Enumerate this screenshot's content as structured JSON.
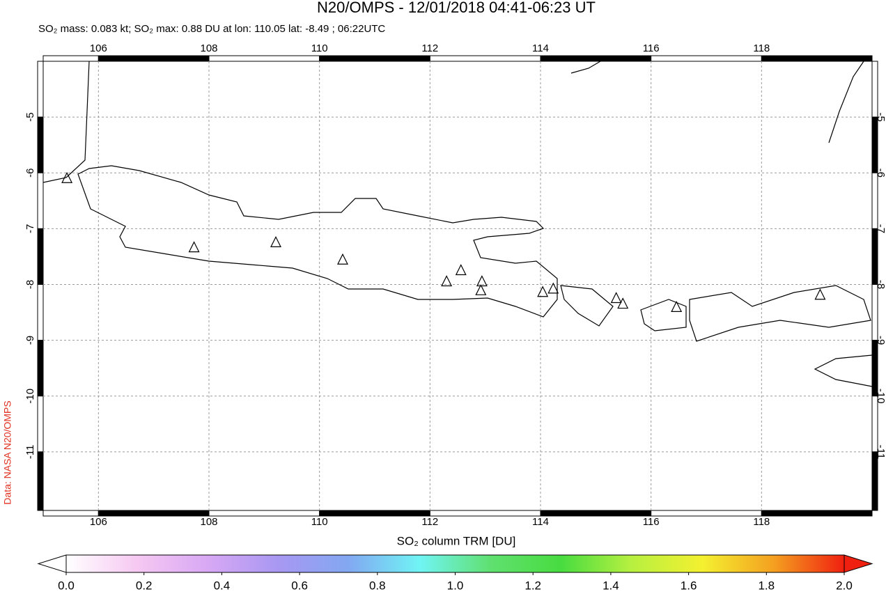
{
  "chart_data": {
    "type": "map",
    "title": "N20/OMPS - 12/01/2018 04:41-06:23 UT",
    "subtitle": "SO₂ mass: 0.083 kt; SO₂ max: 0.88 DU at lon: 110.05 lat: -8.49 ; 06:22UTC",
    "side_note": "Data: NASA N20/OMPS",
    "xlim": [
      105,
      120
    ],
    "ylim": [
      -12.05,
      -4
    ],
    "xticks": [
      106,
      108,
      110,
      112,
      114,
      116,
      118
    ],
    "yticks": [
      -5,
      -6,
      -7,
      -8,
      -9,
      -10,
      -11
    ],
    "grid": true,
    "volcanoes": {
      "x": [
        105.43,
        107.73,
        109.21,
        110.42,
        112.3,
        112.56,
        112.94,
        112.92,
        114.04,
        114.23,
        115.37,
        115.49,
        116.46,
        119.06
      ],
      "y": [
        -6.1,
        -7.34,
        -7.25,
        -7.56,
        -7.95,
        -7.75,
        -7.95,
        -8.11,
        -8.14,
        -8.08,
        -8.25,
        -8.35,
        -8.41,
        -8.19
      ]
    },
    "colorbar": {
      "label": "SO₂ column TRM [DU]",
      "lim": [
        0,
        2
      ],
      "colors": [
        "#ffffff",
        "#f6c8f2",
        "#d8a8f4",
        "#a898f2",
        "#82a8f2",
        "#70f4f4",
        "#60e070",
        "#48dc40",
        "#b8f040",
        "#f4f030",
        "#f4a020",
        "#f02010"
      ],
      "ticks": [
        {
          "value": 0,
          "label": "0.0"
        },
        {
          "value": 0.2,
          "label": "0.2"
        },
        {
          "value": 0.4,
          "label": "0.4"
        },
        {
          "value": 0.6,
          "label": "0.6"
        },
        {
          "value": 0.8,
          "label": "0.8"
        },
        {
          "value": 1,
          "label": "1.0"
        },
        {
          "value": 1.2,
          "label": "1.2"
        },
        {
          "value": 1.4,
          "label": "1.4"
        },
        {
          "value": 1.6,
          "label": "1.6"
        },
        {
          "value": 1.8,
          "label": "1.8"
        },
        {
          "value": 2,
          "label": "2.0"
        }
      ]
    }
  }
}
